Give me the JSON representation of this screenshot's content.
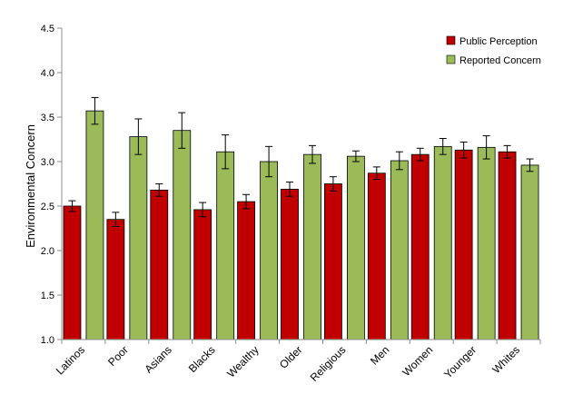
{
  "chart_data": {
    "type": "bar",
    "title": "",
    "xlabel": "",
    "ylabel": "Environmental Concern",
    "ylim": [
      1.0,
      4.5
    ],
    "yticks": [
      "1.0",
      "1.5",
      "2.0",
      "2.5",
      "3.0",
      "3.5",
      "4.0",
      "4.5"
    ],
    "ytick_values": [
      1.0,
      1.5,
      2.0,
      2.5,
      3.0,
      3.5,
      4.0,
      4.5
    ],
    "grid": false,
    "legend_position": "top-right",
    "categories": [
      "Latinos",
      "Poor",
      "Asians",
      "Blacks",
      "Wealthy",
      "Older",
      "Religious",
      "Men",
      "Women",
      "Younger",
      "Whites"
    ],
    "series": [
      {
        "name": "Public Perception",
        "color": "#c00000",
        "values": [
          2.5,
          2.35,
          2.68,
          2.46,
          2.55,
          2.69,
          2.75,
          2.87,
          3.08,
          3.13,
          3.11
        ],
        "errors": [
          0.06,
          0.08,
          0.07,
          0.08,
          0.08,
          0.08,
          0.08,
          0.07,
          0.07,
          0.09,
          0.07
        ]
      },
      {
        "name": "Reported Concern",
        "color": "#9bbb59",
        "values": [
          3.57,
          3.28,
          3.35,
          3.11,
          3.0,
          3.08,
          3.06,
          3.01,
          3.17,
          3.16,
          2.96
        ],
        "errors": [
          0.15,
          0.2,
          0.2,
          0.19,
          0.17,
          0.1,
          0.06,
          0.1,
          0.09,
          0.13,
          0.07
        ]
      }
    ]
  }
}
